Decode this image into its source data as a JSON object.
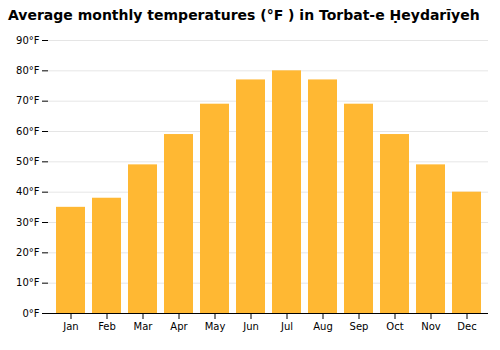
{
  "chart_data": {
    "type": "bar",
    "title": "Average monthly temperatures (°F ) in Torbat-e Ḥeydarīyeh",
    "categories": [
      "Jan",
      "Feb",
      "Mar",
      "Apr",
      "May",
      "Jun",
      "Jul",
      "Aug",
      "Sep",
      "Oct",
      "Nov",
      "Dec"
    ],
    "values": [
      35,
      38,
      49,
      59,
      69,
      77,
      80,
      77,
      69,
      59,
      49,
      40
    ],
    "color": "#FFB833",
    "ylim": [
      0,
      90
    ],
    "yticks": [
      {
        "value": 0,
        "label": "0°F"
      },
      {
        "value": 10,
        "label": "10°F"
      },
      {
        "value": 20,
        "label": "20°F"
      },
      {
        "value": 30,
        "label": "30°F"
      },
      {
        "value": 40,
        "label": "40°F"
      },
      {
        "value": 50,
        "label": "50°F"
      },
      {
        "value": 60,
        "label": "60°F"
      },
      {
        "value": 70,
        "label": "70°F"
      },
      {
        "value": 80,
        "label": "80°F"
      },
      {
        "value": 90,
        "label": "90°F"
      }
    ],
    "grid": true
  }
}
